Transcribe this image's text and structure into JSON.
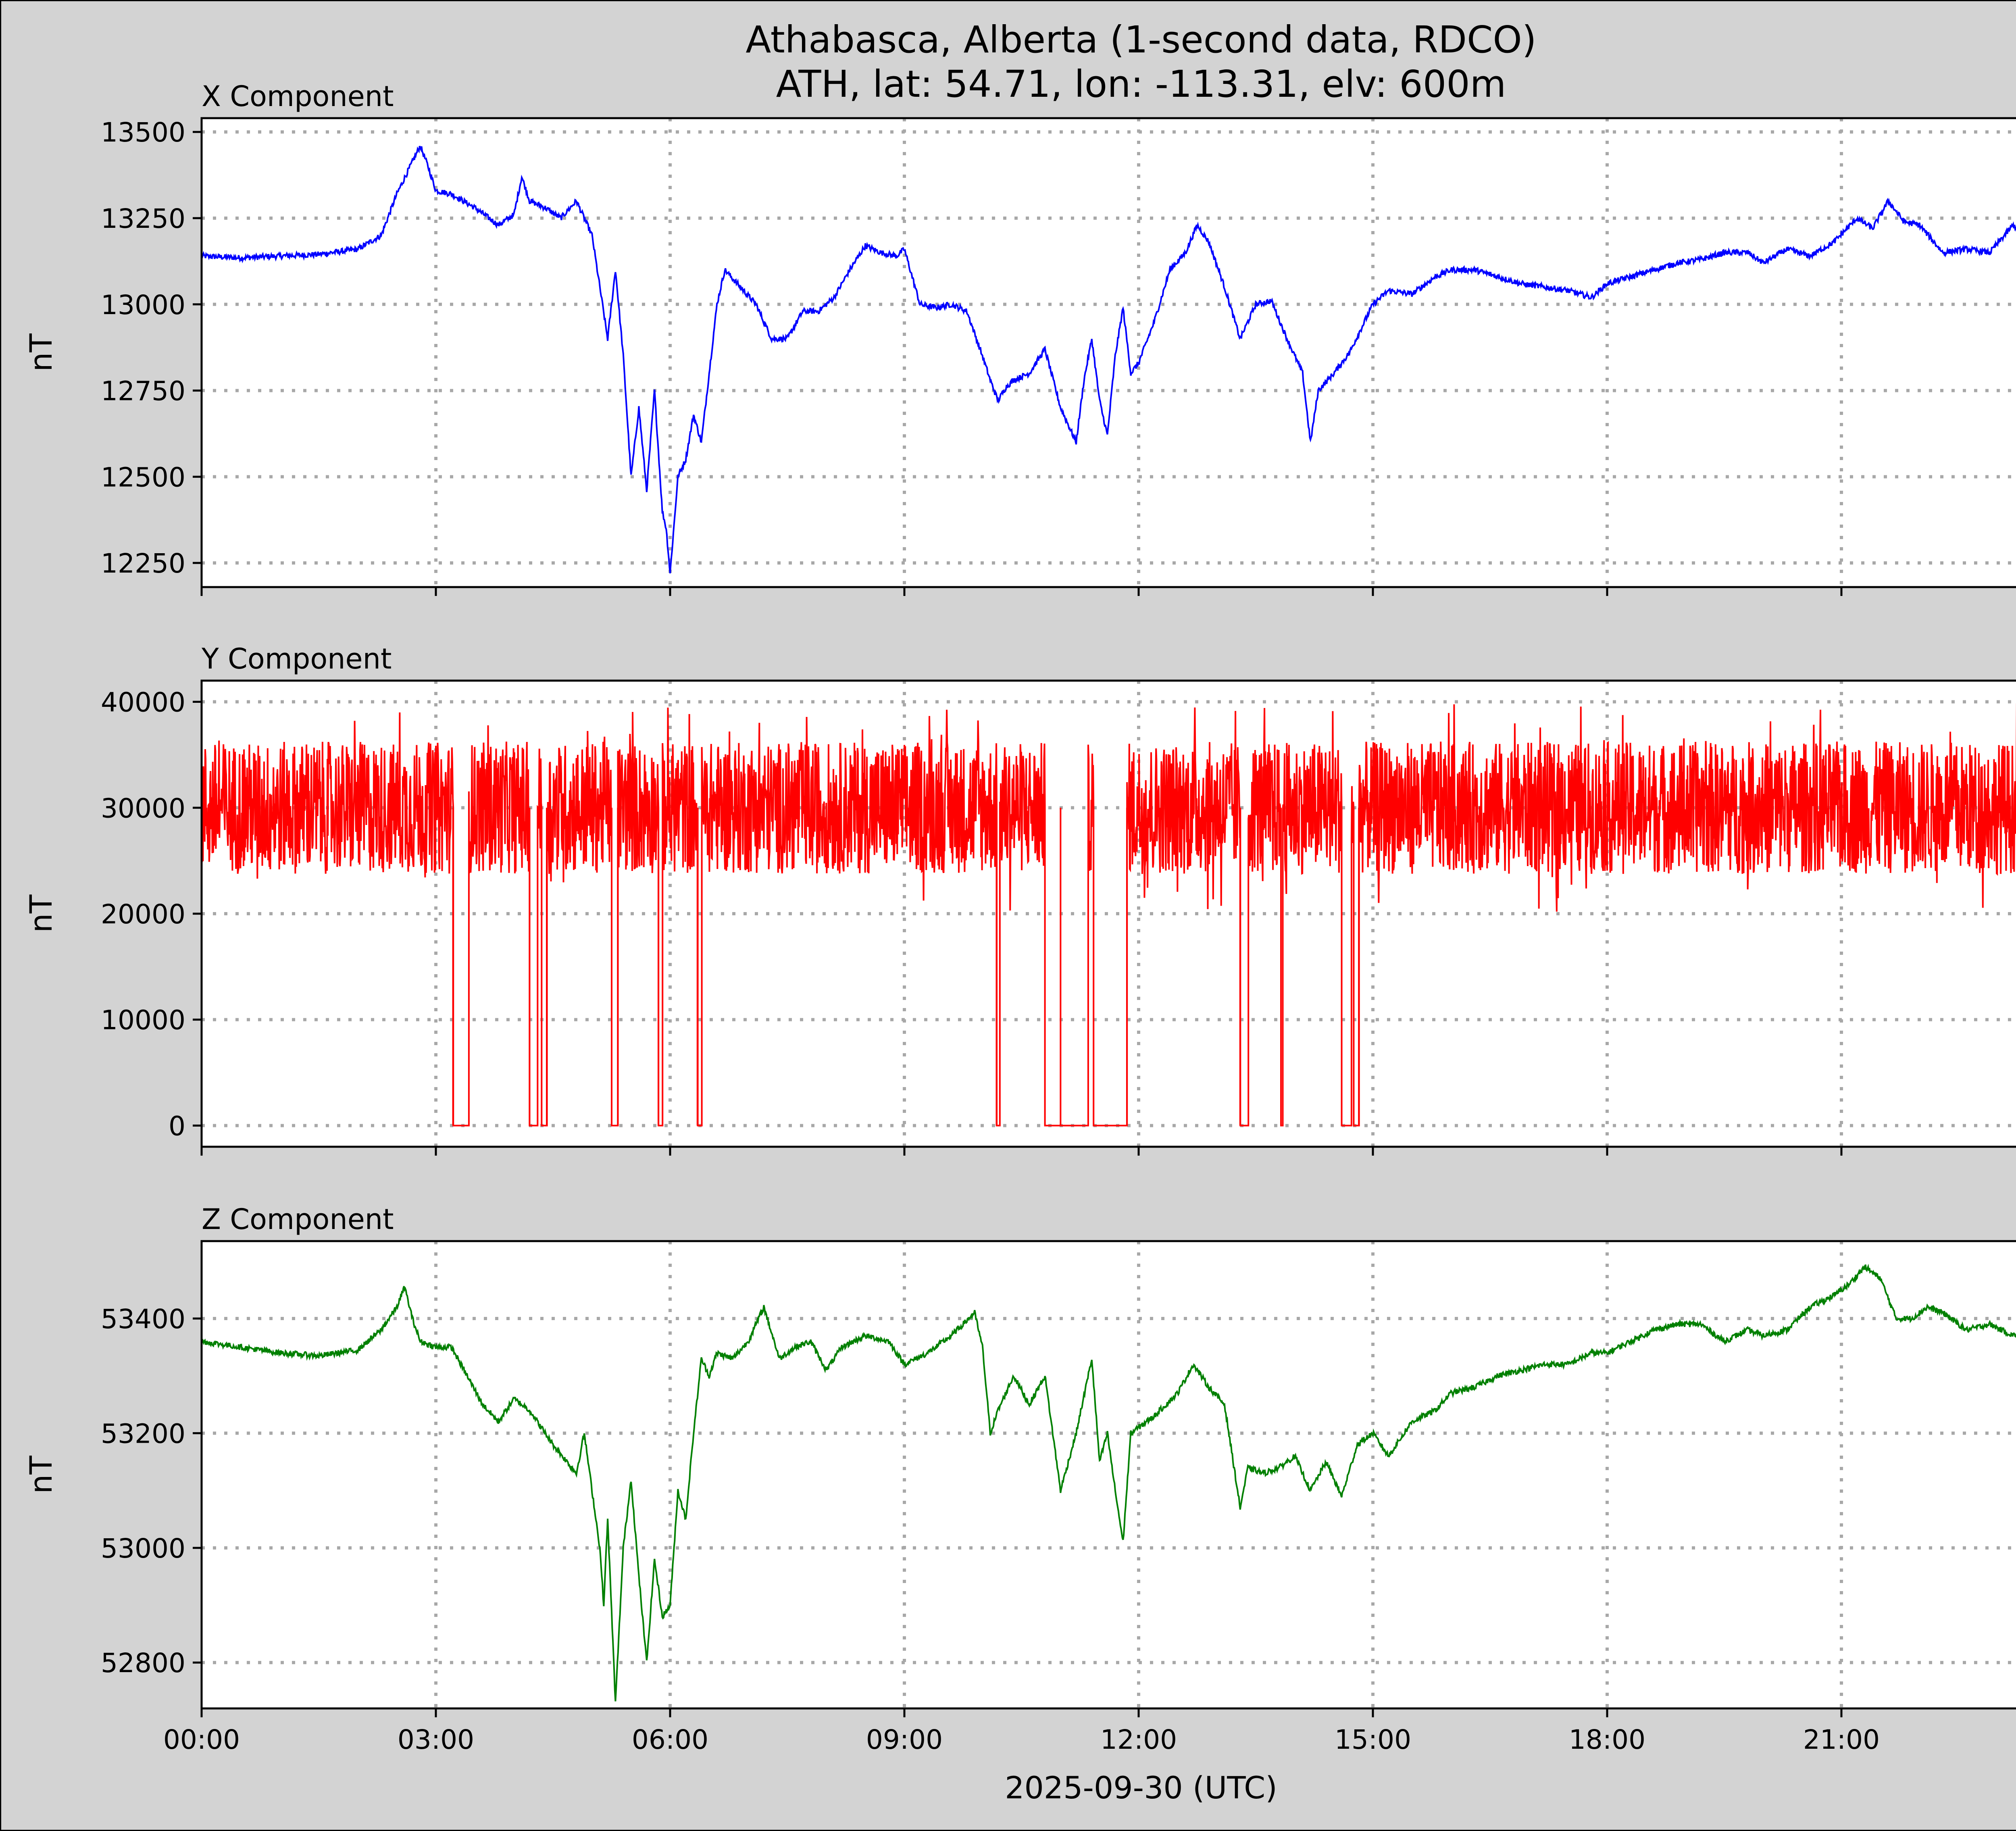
{
  "figure": {
    "title_line1": "Athabasca, Alberta (1-second data, RDCO)",
    "title_line2": "ATH, lat: 54.71, lon: -113.31, elv: 600m",
    "xlabel": "2025-09-30 (UTC)",
    "background": "#d3d3d3"
  },
  "chart_data": [
    {
      "type": "line",
      "title": "X Component",
      "ylabel": "nT",
      "color": "#0000ff",
      "xlim": [
        0,
        24
      ],
      "ylim": [
        12180,
        13540
      ],
      "yticks": [
        12250,
        12500,
        12750,
        13000,
        13250,
        13500
      ],
      "xticks": [
        "00:00",
        "03:00",
        "06:00",
        "09:00",
        "12:00",
        "15:00",
        "18:00",
        "21:00"
      ],
      "grid": true,
      "x_hours": [
        0,
        0.5,
        1,
        1.5,
        2,
        2.3,
        2.5,
        2.8,
        2.9,
        3.0,
        3.2,
        3.5,
        3.8,
        4.0,
        4.1,
        4.2,
        4.4,
        4.6,
        4.8,
        5.0,
        5.1,
        5.2,
        5.3,
        5.4,
        5.5,
        5.6,
        5.7,
        5.8,
        5.9,
        5.95,
        6.0,
        6.1,
        6.2,
        6.3,
        6.4,
        6.5,
        6.6,
        6.7,
        6.9,
        7.1,
        7.3,
        7.5,
        7.7,
        7.9,
        8.1,
        8.3,
        8.5,
        8.7,
        8.9,
        9.0,
        9.2,
        9.4,
        9.6,
        9.8,
        10.0,
        10.1,
        10.2,
        10.3,
        10.4,
        10.6,
        10.8,
        11.0,
        11.2,
        11.3,
        11.4,
        11.5,
        11.6,
        11.7,
        11.8,
        11.9,
        12.0,
        12.2,
        12.4,
        12.6,
        12.75,
        12.9,
        13.1,
        13.3,
        13.5,
        13.7,
        13.9,
        14.1,
        14.2,
        14.3,
        14.5,
        14.7,
        15.0,
        15.2,
        15.5,
        15.8,
        16.0,
        16.3,
        16.6,
        16.9,
        17.2,
        17.5,
        17.8,
        18.0,
        18.3,
        18.6,
        18.9,
        19.2,
        19.5,
        19.8,
        20.0,
        20.3,
        20.6,
        20.9,
        21.2,
        21.4,
        21.6,
        21.8,
        22.0,
        22.3,
        22.6,
        22.9,
        23.2,
        23.5,
        23.7,
        23.99
      ],
      "values": [
        13140,
        13135,
        13140,
        13145,
        13160,
        13200,
        13320,
        13460,
        13400,
        13330,
        13320,
        13280,
        13230,
        13260,
        13370,
        13300,
        13280,
        13250,
        13300,
        13200,
        13050,
        12900,
        13100,
        12850,
        12500,
        12700,
        12460,
        12750,
        12400,
        12350,
        12220,
        12500,
        12550,
        12680,
        12600,
        12800,
        13000,
        13100,
        13050,
        13000,
        12900,
        12900,
        12980,
        12980,
        13020,
        13100,
        13170,
        13150,
        13140,
        13160,
        13000,
        12990,
        13000,
        12980,
        12850,
        12780,
        12720,
        12760,
        12780,
        12800,
        12870,
        12700,
        12600,
        12780,
        12900,
        12720,
        12620,
        12850,
        12990,
        12800,
        12830,
        12950,
        13100,
        13150,
        13230,
        13180,
        13050,
        12900,
        13000,
        13010,
        12900,
        12800,
        12600,
        12750,
        12800,
        12860,
        13000,
        13040,
        13030,
        13080,
        13100,
        13100,
        13080,
        13060,
        13050,
        13040,
        13020,
        13060,
        13080,
        13100,
        13120,
        13130,
        13150,
        13150,
        13120,
        13160,
        13140,
        13180,
        13250,
        13220,
        13300,
        13240,
        13230,
        13150,
        13160,
        13150,
        13230,
        13160,
        13200,
        13220
      ]
    },
    {
      "type": "line",
      "title": "Y Component",
      "ylabel": "nT",
      "color": "#ff0000",
      "xlim": [
        0,
        24
      ],
      "ylim": [
        -2000,
        42000
      ],
      "yticks": [
        0,
        10000,
        20000,
        30000,
        40000
      ],
      "xticks": [
        "00:00",
        "03:00",
        "06:00",
        "09:00",
        "12:00",
        "15:00",
        "18:00",
        "21:00"
      ],
      "grid": true,
      "typical_level": 30000,
      "noise_min": 20000,
      "noise_max": 40000,
      "dropout_level": 0,
      "dropout_intervals_hours": [
        [
          3.22,
          3.42
        ],
        [
          4.2,
          4.3
        ],
        [
          4.35,
          4.42
        ],
        [
          5.25,
          5.33
        ],
        [
          5.85,
          5.9
        ],
        [
          6.35,
          6.4
        ],
        [
          10.18,
          10.22
        ],
        [
          10.8,
          11.35
        ],
        [
          11.42,
          11.85
        ],
        [
          13.3,
          13.4
        ],
        [
          13.82,
          13.84
        ],
        [
          14.6,
          14.72
        ],
        [
          14.75,
          14.82
        ]
      ],
      "spike_hours": [
        3.22,
        4.2,
        4.42,
        5.33,
        5.85,
        6.35,
        10.18,
        11.0,
        11.85,
        13.3,
        14.6,
        14.82
      ]
    },
    {
      "type": "line",
      "title": "Z Component",
      "ylabel": "nT",
      "color": "#008000",
      "xlim": [
        0,
        24
      ],
      "ylim": [
        52720,
        53535
      ],
      "yticks": [
        52800,
        53000,
        53200,
        53400
      ],
      "xticks": [
        "00:00",
        "03:00",
        "06:00",
        "09:00",
        "12:00",
        "15:00",
        "18:00",
        "21:00"
      ],
      "grid": true,
      "x_hours": [
        0,
        0.5,
        1,
        1.5,
        2,
        2.3,
        2.5,
        2.6,
        2.7,
        2.8,
        3.0,
        3.2,
        3.4,
        3.6,
        3.8,
        4.0,
        4.2,
        4.5,
        4.8,
        4.9,
        5.0,
        5.1,
        5.15,
        5.2,
        5.3,
        5.4,
        5.5,
        5.6,
        5.7,
        5.8,
        5.9,
        6.0,
        6.1,
        6.2,
        6.3,
        6.4,
        6.5,
        6.6,
        6.8,
        7.0,
        7.2,
        7.4,
        7.6,
        7.8,
        8.0,
        8.2,
        8.5,
        8.8,
        9.0,
        9.3,
        9.6,
        9.9,
        10.0,
        10.1,
        10.2,
        10.4,
        10.6,
        10.8,
        11.0,
        11.2,
        11.4,
        11.5,
        11.6,
        11.7,
        11.8,
        11.9,
        12.0,
        12.2,
        12.5,
        12.7,
        12.9,
        13.1,
        13.3,
        13.4,
        13.6,
        13.8,
        14.0,
        14.2,
        14.4,
        14.6,
        14.8,
        15.0,
        15.2,
        15.5,
        15.8,
        16.0,
        16.3,
        16.6,
        16.9,
        17.2,
        17.5,
        17.8,
        18.0,
        18.3,
        18.6,
        18.9,
        19.2,
        19.5,
        19.8,
        20.0,
        20.3,
        20.6,
        20.9,
        21.1,
        21.3,
        21.5,
        21.7,
        21.9,
        22.1,
        22.3,
        22.6,
        22.9,
        23.2,
        23.5,
        23.7,
        23.99
      ],
      "values": [
        53360,
        53350,
        53340,
        53335,
        53345,
        53380,
        53420,
        53455,
        53400,
        53360,
        53350,
        53350,
        53300,
        53250,
        53220,
        53260,
        53240,
        53180,
        53130,
        53200,
        53100,
        53000,
        52900,
        53050,
        52730,
        53000,
        53120,
        52950,
        52800,
        52980,
        52880,
        52900,
        53100,
        53050,
        53200,
        53330,
        53300,
        53340,
        53330,
        53360,
        53420,
        53330,
        53350,
        53360,
        53310,
        53350,
        53370,
        53360,
        53320,
        53340,
        53370,
        53410,
        53350,
        53200,
        53240,
        53300,
        53250,
        53300,
        53100,
        53200,
        53330,
        53150,
        53200,
        53100,
        53010,
        53200,
        53210,
        53230,
        53270,
        53320,
        53280,
        53250,
        53070,
        53140,
        53130,
        53140,
        53160,
        53100,
        53150,
        53090,
        53180,
        53200,
        53160,
        53220,
        53240,
        53270,
        53280,
        53300,
        53310,
        53320,
        53320,
        53340,
        53340,
        53360,
        53380,
        53390,
        53390,
        53360,
        53380,
        53370,
        53380,
        53420,
        53440,
        53460,
        53490,
        53470,
        53400,
        53400,
        53420,
        53410,
        53380,
        53390,
        53370,
        53390,
        53380,
        53400
      ]
    }
  ]
}
